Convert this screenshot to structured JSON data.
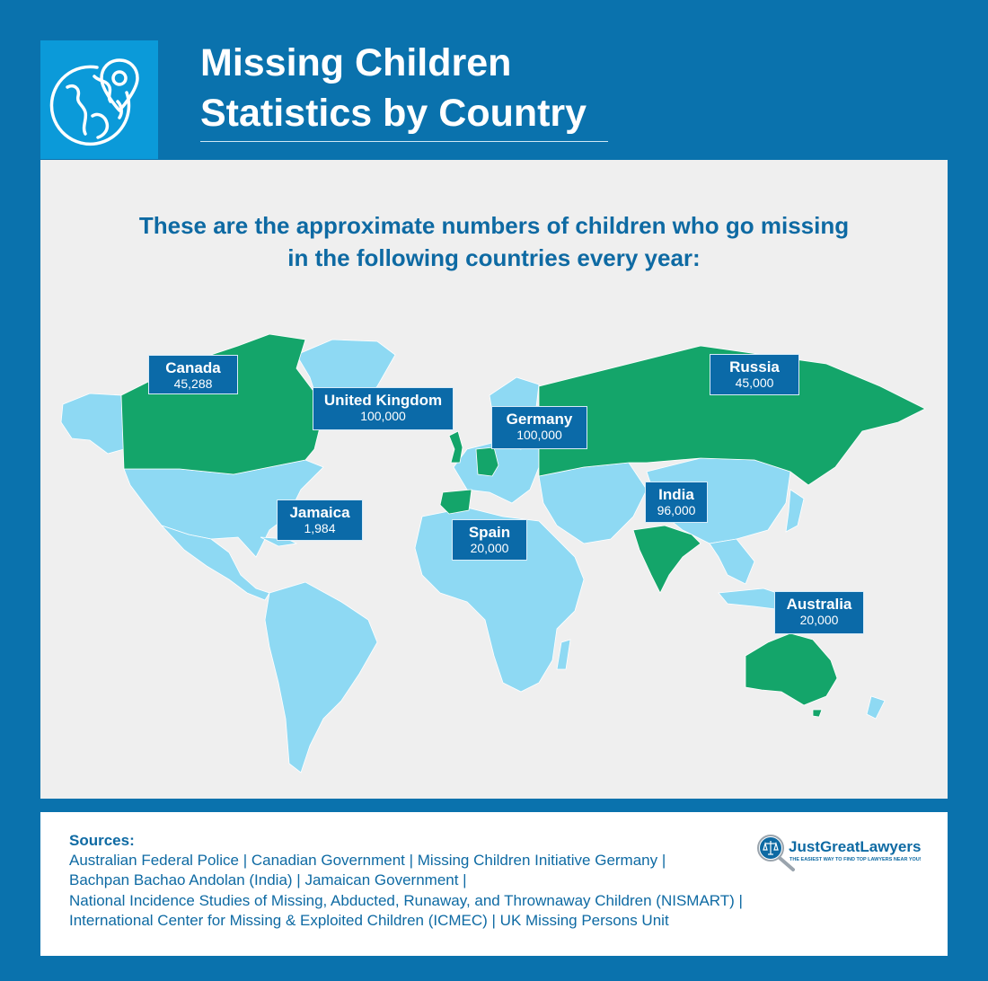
{
  "header": {
    "title_line1": "Missing Children",
    "title_line2": "Statistics by Country",
    "icon": "globe-location-pin-icon"
  },
  "intro": {
    "line1": "These are the approximate numbers of children who go missing",
    "line2": "in the following countries every year:"
  },
  "map": {
    "land_color": "#8ed9f3",
    "highlight_color": "#14a56a",
    "callout_color": "#0b6aa8",
    "countries": [
      {
        "name": "Canada",
        "value": "45,288"
      },
      {
        "name": "United Kingdom",
        "value": "100,000"
      },
      {
        "name": "Jamaica",
        "value": "1,984"
      },
      {
        "name": "Germany",
        "value": "100,000"
      },
      {
        "name": "Spain",
        "value": "20,000"
      },
      {
        "name": "Russia",
        "value": "45,000"
      },
      {
        "name": "India",
        "value": "96,000"
      },
      {
        "name": "Australia",
        "value": "20,000"
      }
    ]
  },
  "sources": {
    "heading": "Sources:",
    "lines": [
      "Australian Federal Police | Canadian Government | Missing Children Initiative Germany |",
      "Bachpan Bachao Andolan (India) | Jamaican Government |",
      "National Incidence Studies of Missing, Abducted, Runaway, and Thrownaway Children (NISMART) |",
      "International Center for Missing & Exploited Children (ICMEC) | UK Missing Persons Unit"
    ]
  },
  "logo": {
    "name": "JustGreatLawyers",
    "tagline": "THE EASIEST WAY TO FIND TOP LAWYERS NEAR YOU!",
    "icon": "scales-magnifier-icon"
  }
}
